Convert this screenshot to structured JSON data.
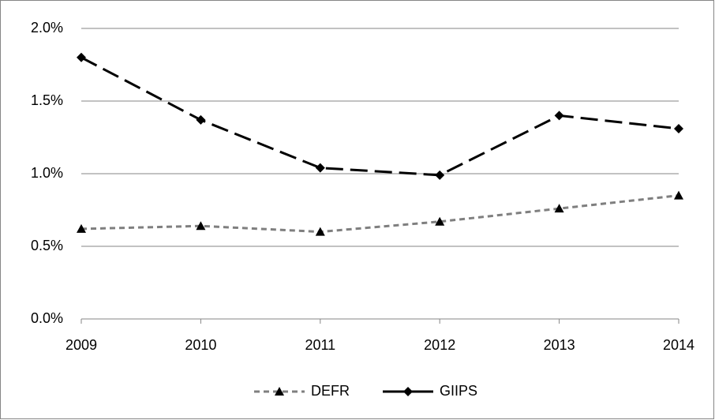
{
  "chart_data": {
    "type": "line",
    "x": [
      2009,
      2010,
      2011,
      2012,
      2013,
      2014
    ],
    "xlim": [
      2009,
      2014
    ],
    "xticks": [
      2009,
      2010,
      2011,
      2012,
      2013,
      2014
    ],
    "ylim": [
      0,
      2.0
    ],
    "yticks": [
      {
        "value": 0,
        "label": "0.0%"
      },
      {
        "value": 0.5,
        "label": "0.5%"
      },
      {
        "value": 1.0,
        "label": "1.0%"
      },
      {
        "value": 1.5,
        "label": "1.5%"
      },
      {
        "value": 2.0,
        "label": "2.0%"
      }
    ],
    "grid": true,
    "legend": "bottom",
    "series": [
      {
        "name": "DEFR",
        "color": "#7f7f7f",
        "marker": "triangle",
        "linestyle": "dashed",
        "values": [
          0.62,
          0.64,
          0.6,
          0.67,
          0.76,
          0.85
        ]
      },
      {
        "name": "GIIPS",
        "color": "#000000",
        "marker": "diamond",
        "linestyle": "long-dashed",
        "values": [
          1.8,
          1.37,
          1.04,
          0.99,
          1.4,
          1.31
        ]
      }
    ]
  }
}
